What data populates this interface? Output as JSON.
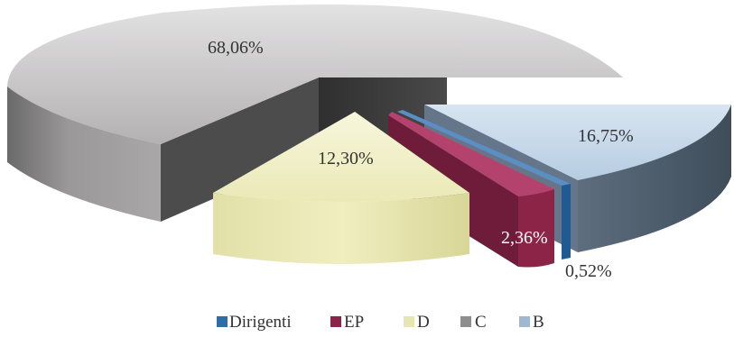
{
  "chart_data": {
    "type": "pie",
    "title": "",
    "style": "3d-exploded",
    "legend_position": "bottom",
    "slices": [
      {
        "name": "Dirigenti",
        "value": 0.52,
        "label": "0,52%",
        "color": "#2e6ea6"
      },
      {
        "name": "EP",
        "value": 2.36,
        "label": "2,36%",
        "color": "#8c2448"
      },
      {
        "name": "D",
        "value": 12.3,
        "label": "12,30%",
        "color": "#f1efc2"
      },
      {
        "name": "C",
        "value": 68.06,
        "label": "68,06%",
        "color": "#b5b3b4"
      },
      {
        "name": "B",
        "value": 16.75,
        "label": "16,75%",
        "color": "#bfd3e6"
      }
    ]
  }
}
